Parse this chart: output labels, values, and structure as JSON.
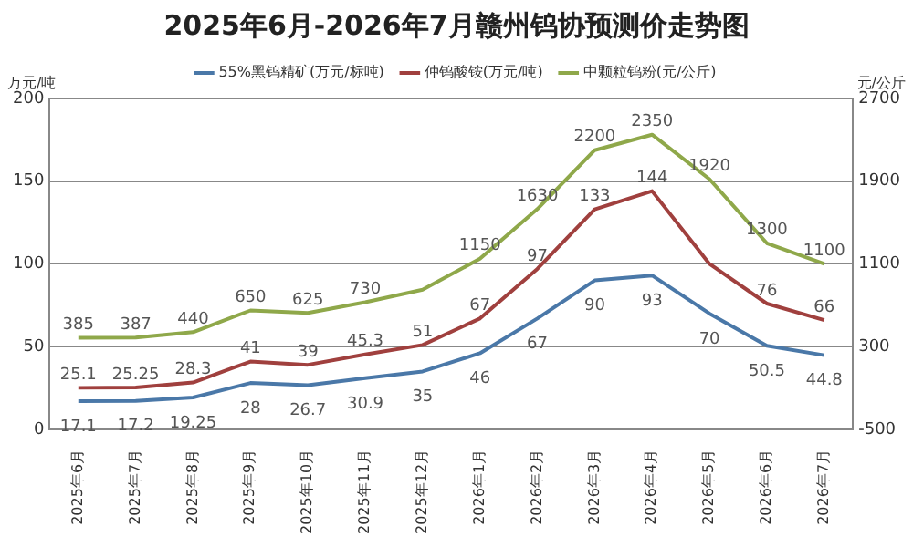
{
  "chart_data": {
    "type": "line",
    "title": "2025年6月-2026年7月赣州钨协预测价走势图",
    "ylabel": "万元/吨",
    "y2label": "元/公斤",
    "categories": [
      "2025年6月",
      "2025年7月",
      "2025年8月",
      "2025年9月",
      "2025年10月",
      "2025年11月",
      "2025年12月",
      "2026年1月",
      "2026年2月",
      "2026年3月",
      "2026年4月",
      "2026年5月",
      "2026年6月",
      "2026年7月"
    ],
    "series": [
      {
        "name": "55%黑钨精矿(万元/标吨)",
        "color": "#4a78a8",
        "values": [
          17.1,
          17.2,
          19.25,
          28,
          26.7,
          30.9,
          35,
          46,
          67,
          90,
          93,
          70,
          50.5,
          44.8
        ],
        "value_labels": [
          "17.1",
          "17.2",
          "19.25",
          "28",
          "26.7",
          "30.9",
          "35",
          "46",
          "67",
          "90",
          "93",
          "70",
          "50.5",
          "44.8"
        ]
      },
      {
        "name": "仲钨酸铵(万元/吨)",
        "color": "#a0403e",
        "values": [
          25.1,
          25.25,
          28.3,
          41,
          39,
          45.3,
          51,
          67,
          97,
          133,
          144,
          100,
          76,
          66
        ],
        "value_labels": [
          "25.1",
          "25.25",
          "28.3",
          "41",
          "39",
          "45.3",
          "51",
          "67",
          "97",
          "133",
          "144",
          null,
          "76",
          "66"
        ]
      },
      {
        "name": "中颗粒钨粉(元/公斤)",
        "color": "#8fa84a",
        "axis": "y2",
        "values": [
          385,
          387,
          440,
          650,
          625,
          730,
          850,
          1150,
          1630,
          2200,
          2350,
          1920,
          1300,
          1100
        ],
        "value_labels": [
          "385",
          "387",
          "440",
          "650",
          "625",
          "730",
          null,
          "1150",
          "1630",
          "2200",
          "2350",
          "1920",
          "1300",
          "1100"
        ]
      }
    ],
    "ylim": [
      0,
      200
    ],
    "yticks": [
      0,
      50,
      100,
      150,
      200
    ],
    "y2lim": [
      -500,
      2700
    ],
    "y2ticks": [
      -500,
      300,
      1100,
      1900,
      2700
    ],
    "grid": "y",
    "legend": "top",
    "marker": "none",
    "line_style": "solid"
  }
}
